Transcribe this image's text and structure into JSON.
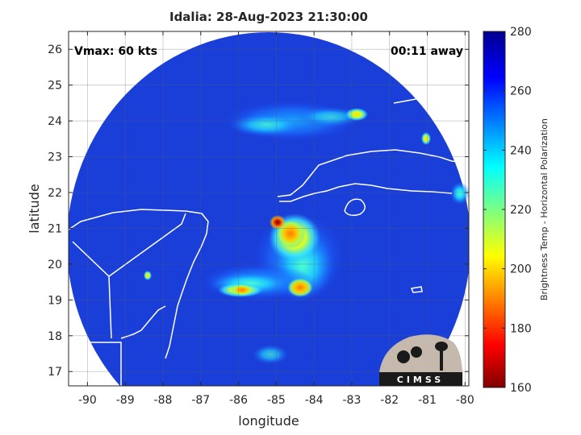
{
  "title": "Idalia: 28-Aug-2023 21:30:00",
  "annotations": {
    "vmax": "Vmax: 60 kts",
    "away": "00:11 away"
  },
  "logo_text": "CIMSS",
  "colors": {
    "land_outline": "#ffffff",
    "background_scan": "#1a3fd9",
    "plot_bg": "#ffffff"
  },
  "chart_data": {
    "type": "heatmap",
    "xlabel": "longitude",
    "ylabel": "latitude",
    "xlim": [
      -90.5,
      -79.9
    ],
    "ylim": [
      16.6,
      26.5
    ],
    "xticks": [
      -90,
      -89,
      -88,
      -87,
      -86,
      -85,
      -84,
      -83,
      -82,
      -81,
      -80
    ],
    "yticks": [
      17,
      18,
      19,
      20,
      21,
      22,
      23,
      24,
      25,
      26
    ],
    "grid": true,
    "colorbar": {
      "label": "Brightness Temp - Horizontal Polarization",
      "range": [
        160,
        280
      ],
      "ticks": [
        160,
        180,
        200,
        220,
        240,
        260,
        280
      ],
      "colormap": "jet"
    },
    "swath_edge_longitudes": [
      -90.0,
      -80.3
    ],
    "features": [
      {
        "name": "storm-core",
        "lon": -85.05,
        "lat": 21.15,
        "tb": 165
      },
      {
        "name": "inner-band",
        "lon": -84.75,
        "lat": 20.8,
        "tb": 185
      },
      {
        "name": "south-band",
        "lon": -85.7,
        "lat": 19.4,
        "tb": 195
      },
      {
        "name": "south-band-east",
        "lon": -84.7,
        "lat": 19.4,
        "tb": 205
      },
      {
        "name": "north-cluster",
        "lon": -82.85,
        "lat": 24.3,
        "tb": 205
      },
      {
        "name": "north-arc",
        "lon": -84.5,
        "lat": 24.0,
        "tb": 240
      }
    ]
  }
}
